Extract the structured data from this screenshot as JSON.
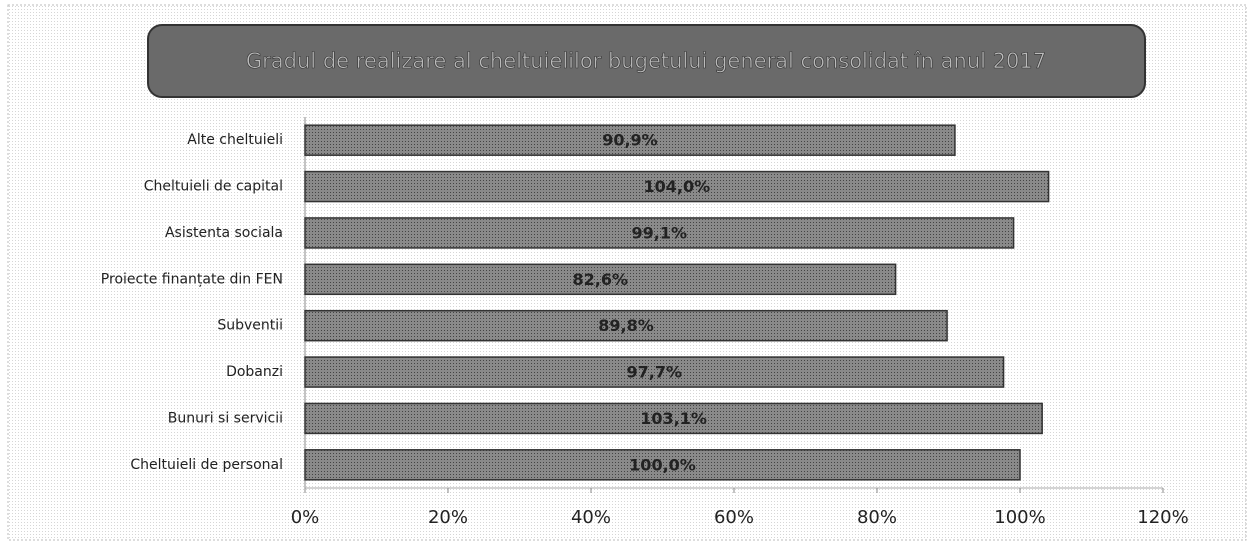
{
  "chart_data": {
    "type": "bar",
    "orientation": "horizontal",
    "title": "Gradul de realizare al cheltuielilor bugetului general consolidat în anul 2017",
    "categories": [
      "Alte cheltuieli",
      "Cheltuieli de capital",
      "Asistenta sociala",
      "Proiecte finanțate din FEN",
      "Subventii",
      "Dobanzi",
      "Bunuri si servicii",
      "Cheltuieli de personal"
    ],
    "values": [
      90.9,
      104.0,
      99.1,
      82.6,
      89.8,
      97.7,
      103.1,
      100.0
    ],
    "value_labels": [
      "90,9%",
      "104,0%",
      "99,1%",
      "82,6%",
      "89,8%",
      "97,7%",
      "103,1%",
      "100,0%"
    ],
    "color": "#7a7a7a",
    "xlim": [
      0,
      120
    ],
    "xticks": [
      {
        "value": 0,
        "label": "0%"
      },
      {
        "value": 20,
        "label": "20%"
      },
      {
        "value": 40,
        "label": "40%"
      },
      {
        "value": 60,
        "label": "60%"
      },
      {
        "value": 80,
        "label": "80%"
      },
      {
        "value": 100,
        "label": "100%"
      },
      {
        "value": 120,
        "label": "120%"
      }
    ]
  }
}
